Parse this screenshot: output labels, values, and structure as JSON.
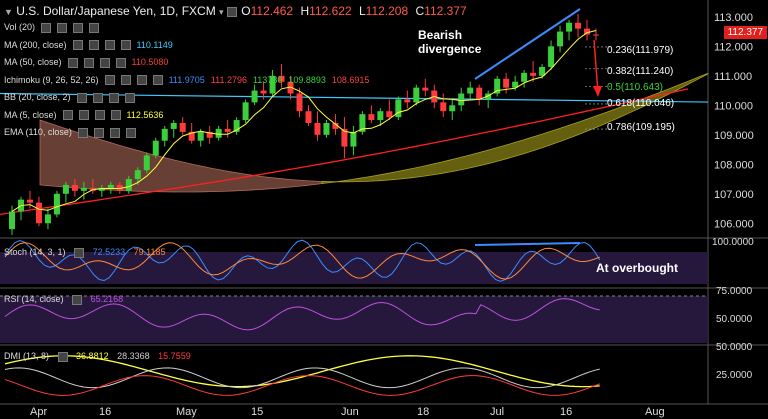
{
  "header": {
    "title": "U.S. Dollar/Japanese Yen, 1D, FXCM",
    "o_label": "O",
    "o": "112.462",
    "h_label": "H",
    "h": "112.622",
    "l_label": "L",
    "l": "112.208",
    "c_label": "C",
    "c": "112.377"
  },
  "indicators": [
    {
      "label": "Vol (20)",
      "values": []
    },
    {
      "label": "MA (200, close)",
      "values": [
        {
          "v": "110.1149",
          "color": "#3ec9ff"
        }
      ]
    },
    {
      "label": "MA (50, close)",
      "values": [
        {
          "v": "110.5080",
          "color": "#ff3b3b"
        }
      ]
    },
    {
      "label": "Ichimoku (9, 26, 52, 26)",
      "values": [
        {
          "v": "111.9705",
          "color": "#3b8cff"
        },
        {
          "v": "111.2796",
          "color": "#ff4040"
        },
        {
          "v": "113780",
          "color": "#3bd03b"
        },
        {
          "v": "109.8893",
          "color": "#3bd03b"
        },
        {
          "v": "108.6915",
          "color": "#ff4040"
        }
      ]
    },
    {
      "label": "BB (20, close, 2)",
      "values": []
    },
    {
      "label": "MA (5, close)",
      "values": [
        {
          "v": "112.5636",
          "color": "#ffff40"
        }
      ]
    },
    {
      "label": "EMA (110, close)",
      "values": []
    }
  ],
  "current_price": "112.377",
  "annotations": {
    "divergence": "Bearish\ndivergence",
    "overbought": "At overbought"
  },
  "fib_labels": [
    {
      "text": "0.236(111.979)",
      "color": "#ffffff"
    },
    {
      "text": "0.382(111.240)",
      "color": "#ffffff"
    },
    {
      "text": "0.5(110.643)",
      "color": "#3bd03b"
    },
    {
      "text": "0.618(110.046)",
      "color": "#ffffff"
    },
    {
      "text": "0.786(109.195)",
      "color": "#ffffff"
    }
  ],
  "stoch_legend": {
    "label": "Stoch (14, 3, 1)",
    "k": "72.5233",
    "d": "79.1185",
    "k_color": "#3b8cff",
    "d_color": "#ff8a3b"
  },
  "rsi_legend": {
    "label": "RSI (14, close)",
    "v": "65.2168",
    "color": "#c050e0"
  },
  "dmi_legend": {
    "label": "DMI (13, 8)",
    "adx": "36.8812",
    "plus": "28.3368",
    "minus": "15.7559",
    "adx_color": "#ffff40",
    "plus_color": "#cfcfcf",
    "minus_color": "#ff3b3b"
  },
  "chart_data": {
    "type": "candlestick",
    "x_ticks": [
      "Apr",
      "16",
      "May",
      "15",
      "Jun",
      "18",
      "Jul",
      "16",
      "Aug"
    ],
    "price_axis": {
      "ticks": [
        "113.000",
        "112.000",
        "111.000",
        "110.000",
        "109.000",
        "108.000",
        "107.000",
        "106.000"
      ],
      "ylim": [
        105.5,
        113.3
      ]
    },
    "stoch_axis": {
      "ticks": [
        "100.0000"
      ],
      "ylim": [
        0,
        100
      ]
    },
    "rsi_axis": {
      "ticks": [
        "75.0000",
        "50.0000"
      ],
      "ylim": [
        30,
        80
      ]
    },
    "dmi_axis": {
      "ticks": [
        "50.0000",
        "25.0000"
      ],
      "ylim": [
        0,
        50
      ]
    },
    "candles": [
      [
        105.8,
        106.6,
        105.6,
        106.4
      ],
      [
        106.4,
        106.9,
        106.1,
        106.8
      ],
      [
        106.8,
        107.1,
        106.5,
        106.7
      ],
      [
        106.7,
        106.9,
        105.9,
        106.0
      ],
      [
        106.0,
        106.5,
        105.8,
        106.3
      ],
      [
        106.3,
        107.1,
        106.2,
        107.0
      ],
      [
        107.0,
        107.4,
        106.7,
        107.3
      ],
      [
        107.3,
        107.5,
        106.9,
        107.1
      ],
      [
        107.1,
        107.4,
        106.8,
        107.2
      ],
      [
        107.2,
        107.5,
        107.0,
        107.1
      ],
      [
        107.1,
        107.3,
        106.9,
        107.2
      ],
      [
        107.2,
        107.4,
        107.0,
        107.3
      ],
      [
        107.3,
        107.4,
        107.0,
        107.1
      ],
      [
        107.1,
        107.6,
        107.0,
        107.5
      ],
      [
        107.5,
        107.9,
        107.3,
        107.8
      ],
      [
        107.8,
        108.4,
        107.7,
        108.3
      ],
      [
        108.3,
        108.9,
        108.2,
        108.8
      ],
      [
        108.8,
        109.3,
        108.6,
        109.2
      ],
      [
        109.2,
        109.5,
        108.9,
        109.4
      ],
      [
        109.4,
        109.6,
        109.0,
        109.1
      ],
      [
        109.1,
        109.4,
        108.7,
        108.8
      ],
      [
        108.8,
        109.2,
        108.6,
        109.1
      ],
      [
        109.1,
        109.3,
        108.7,
        108.9
      ],
      [
        108.9,
        109.3,
        108.8,
        109.2
      ],
      [
        109.2,
        109.5,
        108.9,
        109.1
      ],
      [
        109.1,
        109.6,
        109.0,
        109.5
      ],
      [
        109.5,
        110.2,
        109.4,
        110.1
      ],
      [
        110.1,
        110.7,
        110.0,
        110.5
      ],
      [
        110.5,
        110.8,
        110.2,
        110.4
      ],
      [
        110.4,
        111.2,
        110.3,
        111.0
      ],
      [
        111.0,
        111.4,
        110.6,
        110.8
      ],
      [
        110.8,
        111.0,
        110.2,
        110.4
      ],
      [
        110.4,
        110.6,
        109.6,
        109.8
      ],
      [
        109.8,
        110.0,
        109.3,
        109.4
      ],
      [
        109.4,
        109.8,
        108.8,
        109.0
      ],
      [
        109.0,
        109.5,
        108.9,
        109.4
      ],
      [
        109.4,
        109.7,
        109.0,
        109.2
      ],
      [
        109.2,
        109.6,
        108.2,
        108.6
      ],
      [
        108.6,
        109.3,
        108.3,
        109.1
      ],
      [
        109.1,
        109.8,
        109.0,
        109.7
      ],
      [
        109.7,
        110.0,
        109.4,
        109.5
      ],
      [
        109.5,
        109.9,
        109.3,
        109.8
      ],
      [
        109.8,
        110.2,
        109.5,
        109.6
      ],
      [
        109.6,
        110.3,
        109.5,
        110.2
      ],
      [
        110.2,
        110.5,
        109.9,
        110.1
      ],
      [
        110.1,
        110.7,
        110.0,
        110.6
      ],
      [
        110.6,
        110.9,
        110.3,
        110.5
      ],
      [
        110.5,
        110.7,
        109.9,
        110.1
      ],
      [
        110.1,
        110.4,
        109.6,
        109.8
      ],
      [
        109.8,
        110.2,
        109.5,
        110.0
      ],
      [
        110.0,
        110.6,
        109.8,
        110.4
      ],
      [
        110.4,
        110.8,
        110.2,
        110.6
      ],
      [
        110.6,
        110.7,
        110.0,
        110.2
      ],
      [
        110.2,
        110.5,
        109.9,
        110.4
      ],
      [
        110.4,
        111.0,
        110.3,
        110.9
      ],
      [
        110.9,
        111.1,
        110.4,
        110.6
      ],
      [
        110.6,
        111.0,
        110.5,
        110.8
      ],
      [
        110.8,
        111.2,
        110.6,
        111.1
      ],
      [
        111.1,
        111.5,
        110.8,
        111.0
      ],
      [
        111.0,
        111.4,
        110.9,
        111.3
      ],
      [
        111.3,
        112.2,
        111.2,
        112.0
      ],
      [
        112.0,
        112.7,
        111.8,
        112.5
      ],
      [
        112.5,
        112.9,
        112.2,
        112.8
      ],
      [
        112.8,
        113.1,
        112.3,
        112.6
      ],
      [
        112.6,
        112.9,
        112.2,
        112.4
      ],
      [
        112.4,
        112.6,
        112.2,
        112.377
      ]
    ]
  }
}
